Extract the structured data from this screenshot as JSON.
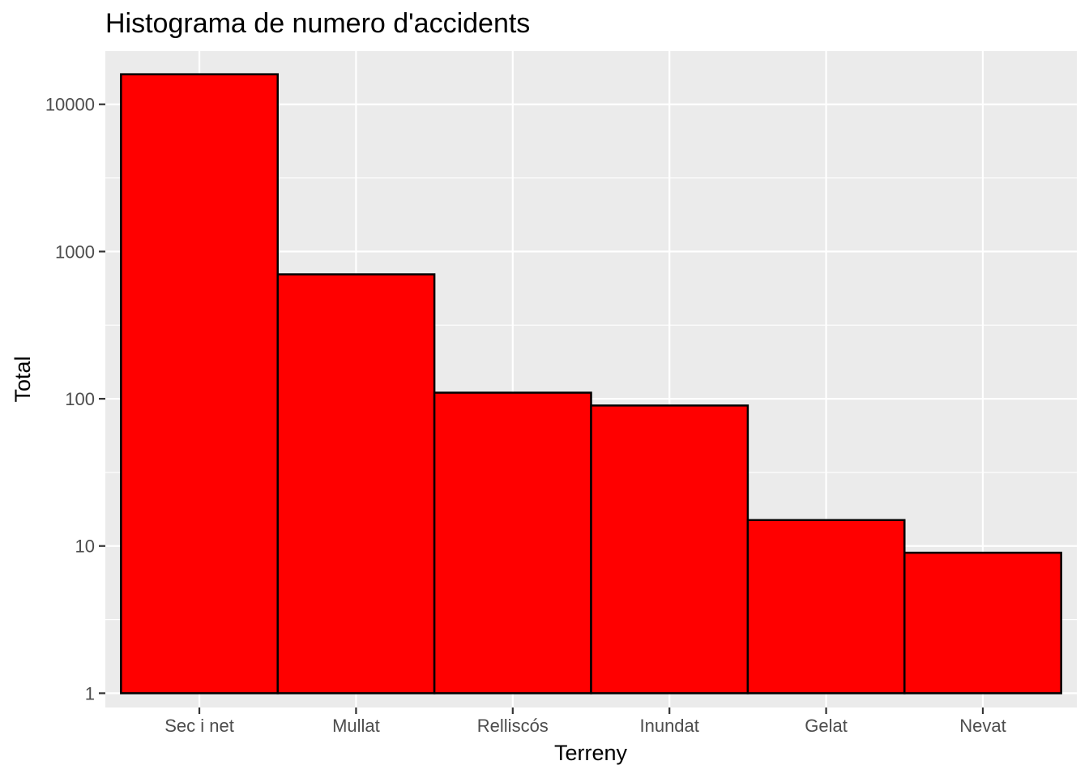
{
  "chart_data": {
    "type": "bar",
    "title": "Histograma de numero d'accidents",
    "xlabel": "Terreny",
    "ylabel": "Total",
    "yscale": "log10",
    "ylim": [
      0.8,
      23000
    ],
    "yticks": [
      1,
      10,
      100,
      1000,
      10000
    ],
    "ytick_labels": [
      "1",
      "10",
      "100",
      "1000",
      "10000"
    ],
    "categories": [
      "Sec i net",
      "Mullat",
      "Relliscós",
      "Inundat",
      "Gelat",
      "Nevat"
    ],
    "values": [
      16000,
      700,
      110,
      90,
      15,
      9
    ],
    "bar_fill": "#ff0000",
    "bar_outline": "#000000",
    "panel_background": "#ebebeb",
    "grid": true,
    "legend": "none"
  }
}
